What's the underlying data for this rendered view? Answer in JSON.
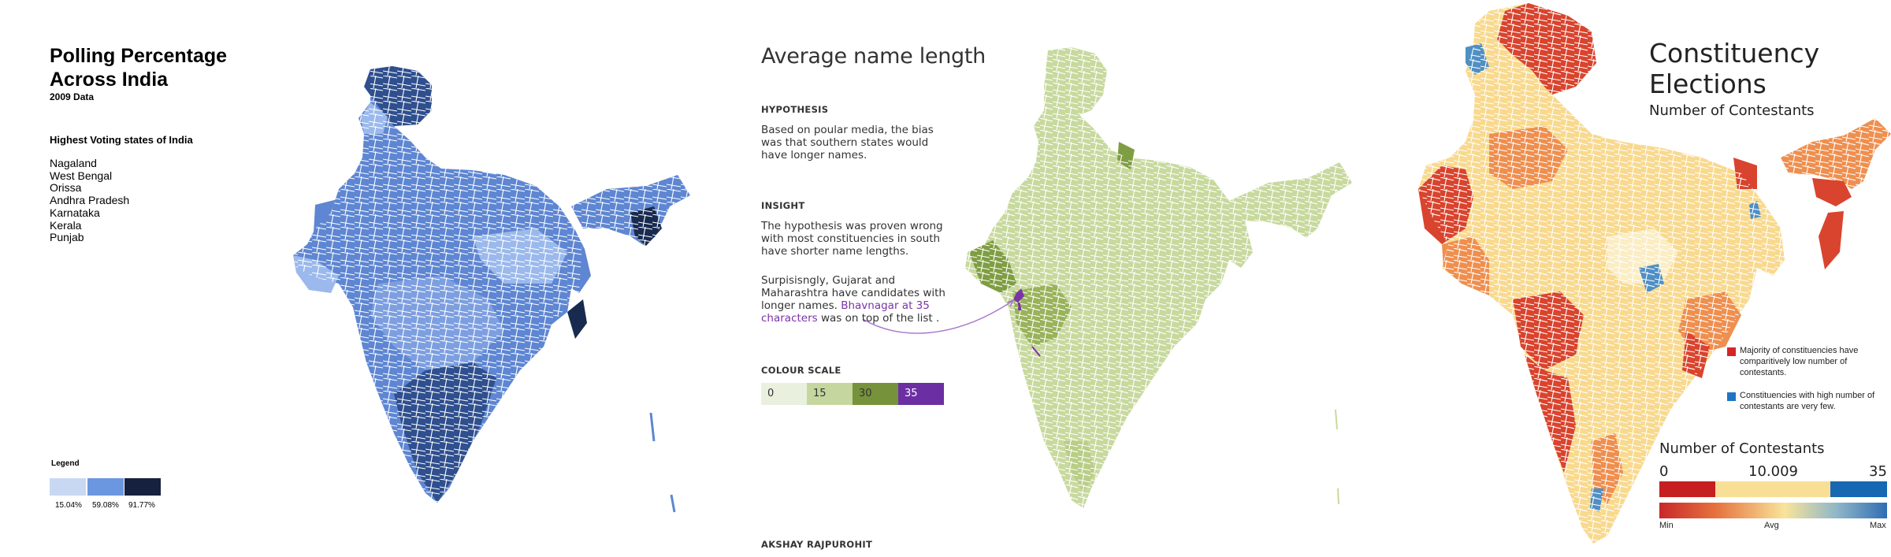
{
  "panel1": {
    "title": "Polling Percentage Across India",
    "subtitle": "2009 Data",
    "list_title": "Highest Voting states of India",
    "states": [
      "Nagaland",
      "West Bengal",
      "Orissa",
      "Andhra Pradesh",
      "Karnataka",
      "Kerala",
      "Punjab"
    ],
    "legend_title": "Legend",
    "legend": [
      {
        "label": "15.04%",
        "color": "#c9d8f2"
      },
      {
        "label": "59.08%",
        "color": "#6b97e0"
      },
      {
        "label": "91.77%",
        "color": "#15213f"
      }
    ],
    "map_colors": {
      "light": "#9bb9ec",
      "mid": "#5e86d2",
      "dark": "#2f4f8e",
      "darkest": "#182a50",
      "border": "#ffffff"
    }
  },
  "panel2": {
    "title": "Average name length",
    "hypothesis_heading": "HYPOTHESIS",
    "hypothesis_text": "Based on poular media, the bias was that southern states would have longer names.",
    "insight_heading": "INSIGHT",
    "insight_text": "The hypothesis was proven wrong with most constituencies in south have shorter name lengths.",
    "insight_text2": "Surpisisngly, Gujarat and Maharashtra have candidates with longer names.",
    "highlight": "Bhavnagar at 35 characters",
    "insight_text3": "was on top of the list .",
    "scale_heading": "COLOUR SCALE",
    "scale": [
      {
        "label": "0",
        "color": "#eaf0de"
      },
      {
        "label": "15",
        "color": "#c5d79e"
      },
      {
        "label": "30",
        "color": "#76923b"
      },
      {
        "label": "35",
        "color": "#6b2fa3"
      }
    ],
    "author": "AKSHAY RAJPUROHIT",
    "map_colors": {
      "base": "#c8d99e",
      "dark": "#7f9e43",
      "highlight": "#7a33a8"
    }
  },
  "panel3": {
    "title": "Constituency Elections",
    "subtitle": "Number of Contestants",
    "note1": "Majority of constituencies have comparitively low number of contestants.",
    "note1_color": "#d32626",
    "note2": "Constituencies with high number of contestants are very few.",
    "note2_color": "#1f74c4",
    "legend_title": "Number of Contestants",
    "legend_min": "0",
    "legend_mid": "10.009",
    "legend_max": "35",
    "bar_colors": [
      "#c61f1f",
      "#f9df96",
      "#1768b2"
    ],
    "scale_min": "Min",
    "scale_avg": "Avg",
    "scale_max": "Max",
    "map_colors": {
      "red": "#d9442e",
      "orange": "#ef8f4f",
      "yellow": "#f8d98e",
      "pale": "#fbedc4",
      "blue": "#4f8fc4"
    }
  }
}
